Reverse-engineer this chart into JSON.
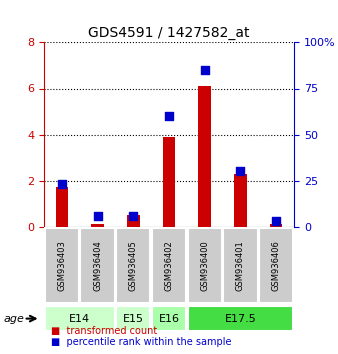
{
  "title": "GDS4591 / 1427582_at",
  "samples": [
    "GSM936403",
    "GSM936404",
    "GSM936405",
    "GSM936402",
    "GSM936400",
    "GSM936401",
    "GSM936406"
  ],
  "transformed_count": [
    1.7,
    0.1,
    0.5,
    3.9,
    6.1,
    2.3,
    0.1
  ],
  "percentile_rank": [
    23,
    6,
    6,
    60,
    85,
    30,
    3
  ],
  "left_ylim": [
    0,
    8
  ],
  "right_ylim": [
    0,
    100
  ],
  "left_yticks": [
    0,
    2,
    4,
    6,
    8
  ],
  "right_yticks": [
    0,
    25,
    50,
    75,
    100
  ],
  "right_yticklabels": [
    "0",
    "25",
    "50",
    "75",
    "100%"
  ],
  "bar_color": "#cc0000",
  "dot_color": "#0000cc",
  "age_groups": [
    {
      "label": "E14",
      "start": 0,
      "end": 2,
      "color": "#ccffcc"
    },
    {
      "label": "E15",
      "start": 2,
      "end": 3,
      "color": "#ccffcc"
    },
    {
      "label": "E16",
      "start": 3,
      "end": 4,
      "color": "#aaffaa"
    },
    {
      "label": "E17.5",
      "start": 4,
      "end": 7,
      "color": "#44dd44"
    }
  ],
  "legend_items": [
    {
      "label": "transformed count",
      "color": "#cc0000",
      "marker": "s"
    },
    {
      "label": "percentile rank within the sample",
      "color": "#0000cc",
      "marker": "s"
    }
  ],
  "age_label": "age",
  "grid_color": "#000000",
  "sample_box_color": "#cccccc",
  "bar_width": 0.35,
  "dot_size": 40
}
